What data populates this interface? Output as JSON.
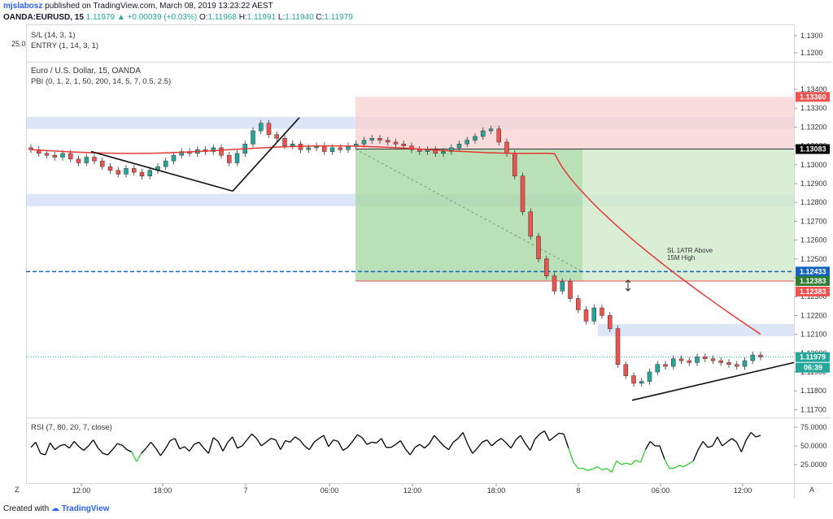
{
  "header": {
    "user": "mjslabosz",
    "published": "published on TradingView.com, March 08, 2019 13:23:22 AEST",
    "symbol": "OANDA:EURUSD, 15",
    "change": "1.11979 ▲ +0.00039 (+0.03%)",
    "o_label": "O:",
    "o_value": "1.11968",
    "h_label": "H:",
    "h_value": "1.11991",
    "l_label": "L:",
    "l_value": "1.11940",
    "c_label": "C:",
    "c_value": "1.11979"
  },
  "pane_top": {
    "level": "25.0",
    "line1": "S/L (14, 3, 1)",
    "line2": "ENTRY (1, 14, 3, 1)"
  },
  "main_legend": {
    "line1": "Euro / U.S. Dollar, 15, OANDA",
    "line2": "PBI (0, 1, 2, 1, 50, 200, 14, 5, 7, 0.5, 2.5)"
  },
  "annotation": {
    "line1": "SL 1ATR Above",
    "line2": "15M High"
  },
  "rsi_legend": "RSI (7, 80, 20, 7, close)",
  "footer": {
    "created": "Created with",
    "brand": "TradingView"
  },
  "axis_corner_left": "Z",
  "axis_corner_right": "A",
  "colors": {
    "up": "#26a69a",
    "down": "#ef5350",
    "ema": "#e53935",
    "rsi": "#000000",
    "rsi_low": "#33cc33",
    "entry_line": "#1565c0"
  },
  "chart_data": [
    {
      "type": "candlestick",
      "symbol": "EURUSD",
      "interval": "15",
      "price_ticks": [
        "1.13400",
        "1.13300",
        "1.13200",
        "1.13100",
        "1.13000",
        "1.12900",
        "1.12800",
        "1.12700",
        "1.12600",
        "1.12500",
        "1.12400",
        "1.12300",
        "1.12200",
        "1.12100",
        "1.12000",
        "1.11900",
        "1.11800",
        "1.11700"
      ],
      "axis_top_ticks": [
        "1.1300",
        "1.1200"
      ],
      "price_tags": [
        {
          "label": "1.13360",
          "value": 1.1336,
          "color": "#ef5350"
        },
        {
          "label": "1.13083",
          "value": 1.13083,
          "color": "#000000"
        },
        {
          "label": "1.12433",
          "value": 1.12433,
          "color": "#1565c0"
        },
        {
          "label": "1.12383",
          "value": 1.12383,
          "color": "#2e7d32"
        },
        {
          "label": "1.12383",
          "value": 1.12383,
          "color": "#ef5350"
        },
        {
          "label": "1.11979",
          "value": 1.11979,
          "color": "#26a69a"
        }
      ],
      "countdown": "06:39",
      "time_ticks": [
        "12:00",
        "18:00",
        "7",
        "06:00",
        "12:00",
        "18:00",
        "8",
        "06:00",
        "12:00"
      ],
      "close": [
        1.1308,
        1.1306,
        1.1305,
        1.1304,
        1.1306,
        1.1303,
        1.1301,
        1.1304,
        1.1302,
        1.1299,
        1.1297,
        1.1295,
        1.1298,
        1.1296,
        1.1294,
        1.1297,
        1.1299,
        1.1302,
        1.1305,
        1.1307,
        1.1306,
        1.1308,
        1.1307,
        1.1309,
        1.1305,
        1.1301,
        1.1306,
        1.1311,
        1.1318,
        1.1322,
        1.1316,
        1.1314,
        1.131,
        1.1311,
        1.1308,
        1.1309,
        1.131,
        1.1307,
        1.1309,
        1.1308,
        1.131,
        1.1311,
        1.1313,
        1.1314,
        1.1313,
        1.1312,
        1.1311,
        1.131,
        1.1308,
        1.1307,
        1.1308,
        1.1306,
        1.1307,
        1.1309,
        1.1311,
        1.1313,
        1.1315,
        1.1318,
        1.1319,
        1.1312,
        1.1306,
        1.1294,
        1.1275,
        1.1262,
        1.125,
        1.1241,
        1.1233,
        1.1238,
        1.1229,
        1.1223,
        1.1217,
        1.1224,
        1.122,
        1.1213,
        1.1194,
        1.1188,
        1.1184,
        1.1185,
        1.119,
        1.1194,
        1.1193,
        1.1197,
        1.1196,
        1.1195,
        1.1198,
        1.1197,
        1.1196,
        1.1195,
        1.1194,
        1.1193,
        1.1196,
        1.1199,
        1.1198
      ],
      "ema_start": 1.1308,
      "ema_end": 1.121,
      "trendlines": [
        {
          "from": 1.1307,
          "to": 1.1286
        },
        {
          "from": 1.1286,
          "to": 1.1325
        },
        {
          "from": 1.1175,
          "to": 1.1195
        }
      ],
      "zones": [
        {
          "label": "supply",
          "low": 1.1319,
          "high": 1.1322
        },
        {
          "label": "demand",
          "low": 1.1278,
          "high": 1.1281
        },
        {
          "label": "target",
          "low": 1.1209,
          "high": 1.1212
        }
      ],
      "short_position": {
        "entry": 1.13083,
        "stop": 1.1336,
        "target": 1.12383
      }
    },
    {
      "type": "line",
      "title": "RSI (7, 80, 20, 7, close)",
      "y_ticks": [
        "75.0000",
        "50.0000",
        "25.0000"
      ],
      "ylim": [
        0,
        100
      ],
      "values": [
        48,
        55,
        40,
        38,
        54,
        45,
        50,
        52,
        47,
        56,
        49,
        44,
        50,
        58,
        47,
        40,
        38,
        45,
        53,
        51,
        45,
        42,
        29,
        40,
        47,
        55,
        47,
        37,
        46,
        57,
        60,
        46,
        49,
        43,
        52,
        55,
        47,
        40,
        61,
        56,
        43,
        55,
        62,
        47,
        50,
        58,
        66,
        60,
        50,
        55,
        60,
        58,
        45,
        57,
        55,
        62,
        58,
        50,
        45,
        55,
        60,
        64,
        49,
        58,
        56,
        44,
        48,
        56,
        65,
        61,
        52,
        55,
        54,
        60,
        48,
        48,
        52,
        57,
        46,
        38,
        48,
        52,
        47,
        53,
        64,
        57,
        50,
        45,
        55,
        60,
        68,
        52,
        40,
        47,
        55,
        58,
        50,
        56,
        60,
        54,
        47,
        58,
        64,
        53,
        44,
        59,
        66,
        70,
        57,
        62,
        67,
        66,
        47,
        28,
        20,
        20,
        17,
        19,
        22,
        18,
        20,
        15,
        30,
        25,
        27,
        25,
        31,
        28,
        45,
        56,
        50,
        50,
        32,
        20,
        20,
        24,
        22,
        26,
        30,
        45,
        56,
        48,
        50,
        62,
        50,
        55,
        60,
        55,
        42,
        58,
        68,
        62,
        64
      ]
    }
  ]
}
